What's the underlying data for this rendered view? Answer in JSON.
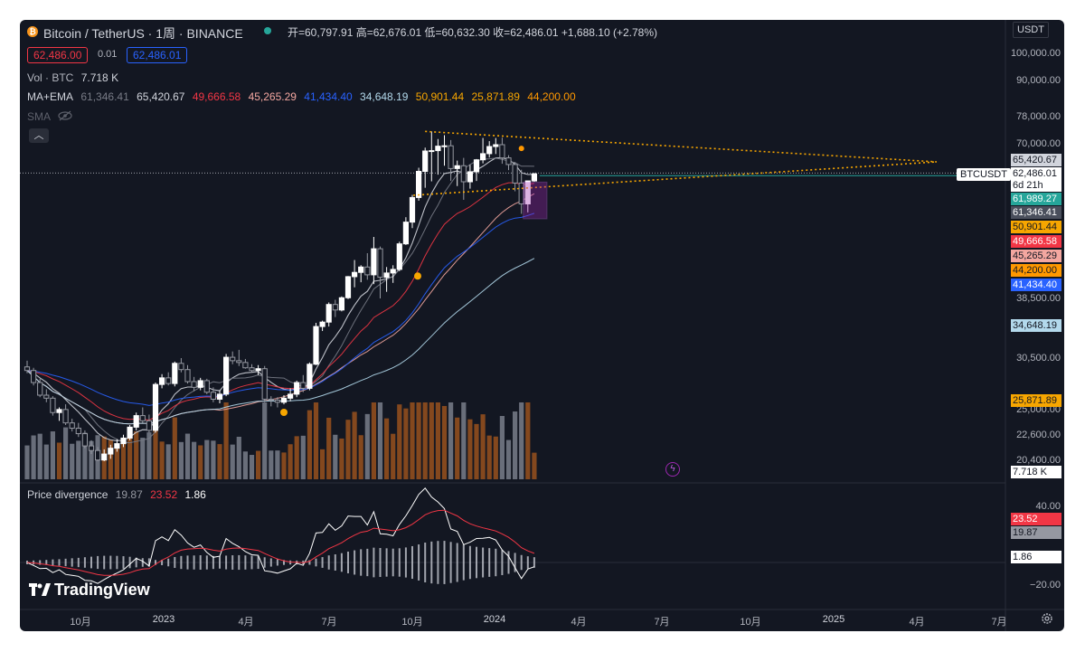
{
  "header": {
    "title": "Bitcoin / TetherUS · 1周 · BINANCE",
    "ohlc": "开=60,797.91 高=62,676.01 低=60,632.30 收=62,486.01 +1,688.10 (+2.78%)",
    "sell_price": "62,486.00",
    "spread": "0.01",
    "buy_price": "62,486.01"
  },
  "legends": {
    "vol": {
      "label": "Vol · BTC",
      "value": "7.718 K"
    },
    "ma_ema": {
      "label": "MA+EMA",
      "values": [
        "61,346.41",
        "65,420.67",
        "49,666.58",
        "45,265.29",
        "41,434.40",
        "34,648.19",
        "50,901.44",
        "25,871.89",
        "44,200.00"
      ]
    },
    "sma": {
      "label": "SMA"
    },
    "divergence": {
      "label": "Price divergence",
      "values": [
        "19.87",
        "23.52",
        "1.86"
      ]
    }
  },
  "axis": {
    "currency": "USDT",
    "price_labels": [
      "100,000.00",
      "90,000.00",
      "78,000.00",
      "70,000.00",
      "38,500.00",
      "30,500.00",
      "25,000.00",
      "22,600.00",
      "20,400.00"
    ],
    "osc_labels": [
      "40.00",
      "−20.00"
    ],
    "time_labels": [
      "10月",
      "2023",
      "4月",
      "7月",
      "10月",
      "2024",
      "4月",
      "7月",
      "10月",
      "2025",
      "4月",
      "7月"
    ]
  },
  "price_tags": [
    {
      "text": "65,420.67",
      "bg": "#d1d4dc",
      "fg": "#131722"
    },
    {
      "text": "62,486.01",
      "bg": "#ffffff",
      "fg": "#131722"
    },
    {
      "text": "6d 21h",
      "bg": "#ffffff",
      "fg": "#131722"
    },
    {
      "text": "61,989.27",
      "bg": "#26a69a",
      "fg": "#ffffff"
    },
    {
      "text": "61,346.41",
      "bg": "#4a4f5c",
      "fg": "#ffffff"
    },
    {
      "text": "50,901.44",
      "bg": "#f7a600",
      "fg": "#131722"
    },
    {
      "text": "49,666.58",
      "bg": "#f23645",
      "fg": "#ffffff"
    },
    {
      "text": "45,265.29",
      "bg": "#f4a7a0",
      "fg": "#131722"
    },
    {
      "text": "44,200.00",
      "bg": "#ff9800",
      "fg": "#131722"
    },
    {
      "text": "41,434.40",
      "bg": "#2962ff",
      "fg": "#ffffff"
    },
    {
      "text": "34,648.19",
      "bg": "#b3d9ec",
      "fg": "#131722"
    },
    {
      "text": "25,871.89",
      "bg": "#f7a600",
      "fg": "#131722"
    },
    {
      "text": "7.718 K",
      "bg": "#ffffff",
      "fg": "#131722"
    },
    {
      "text": "23.52",
      "bg": "#f23645",
      "fg": "#ffffff"
    },
    {
      "text": "19.87",
      "bg": "#9598a1",
      "fg": "#131722"
    },
    {
      "text": "1.86",
      "bg": "#ffffff",
      "fg": "#131722"
    }
  ],
  "symbol_tag": "BTCUSDT",
  "brand": "TradingView",
  "colors": {
    "background": "#131722",
    "up": "#ffffff",
    "down": "#9598a1",
    "vol_up": "#8a4b1f",
    "vol_down": "#6e7380",
    "trend": "#f7a600"
  },
  "chart_data": {
    "type": "candlestick",
    "interval": "1W",
    "symbol": "BTCUSDT",
    "ylim": [
      20000,
      100000
    ],
    "candles": [
      [
        29500,
        30200,
        28800,
        29100
      ],
      [
        29100,
        29400,
        27500,
        27800
      ],
      [
        27800,
        28200,
        26300,
        26500
      ],
      [
        26500,
        27100,
        25800,
        26200
      ],
      [
        26200,
        26400,
        24500,
        24800
      ],
      [
        24800,
        25300,
        24000,
        25100
      ],
      [
        25100,
        25600,
        23600,
        23800
      ],
      [
        23800,
        24200,
        23000,
        23300
      ],
      [
        23300,
        23800,
        22500,
        22800
      ],
      [
        22800,
        23100,
        21500,
        21700
      ],
      [
        21700,
        22200,
        21000,
        21300
      ],
      [
        21300,
        21600,
        20200,
        20500
      ],
      [
        20500,
        21400,
        20100,
        21000
      ],
      [
        21000,
        21800,
        20600,
        21500
      ],
      [
        21500,
        22300,
        21200,
        21900
      ],
      [
        21900,
        22700,
        21600,
        22400
      ],
      [
        22400,
        23600,
        22200,
        23400
      ],
      [
        23400,
        24800,
        23100,
        24500
      ],
      [
        24500,
        25300,
        23800,
        24000
      ],
      [
        24000,
        24600,
        22900,
        23100
      ],
      [
        23100,
        27800,
        22900,
        27600
      ],
      [
        27600,
        28700,
        27200,
        28300
      ],
      [
        28300,
        28900,
        27500,
        27700
      ],
      [
        27700,
        30100,
        27400,
        29900
      ],
      [
        29900,
        30500,
        28900,
        29200
      ],
      [
        29200,
        29700,
        27700,
        27900
      ],
      [
        27900,
        28400,
        26900,
        27300
      ],
      [
        27300,
        28300,
        27000,
        28000
      ],
      [
        28000,
        28200,
        26600,
        26800
      ],
      [
        26800,
        27300,
        25800,
        26100
      ],
      [
        26100,
        27000,
        25700,
        26600
      ],
      [
        26600,
        31000,
        26400,
        30600
      ],
      [
        30600,
        31300,
        29800,
        30200
      ],
      [
        30200,
        31500,
        29600,
        30000
      ],
      [
        30000,
        30400,
        29300,
        29400
      ],
      [
        29400,
        29800,
        28900,
        29100
      ],
      [
        29100,
        29700,
        28600,
        29300
      ],
      [
        29300,
        29600,
        25800,
        26100
      ],
      [
        26100,
        26400,
        25400,
        26000
      ],
      [
        26000,
        26300,
        25300,
        25800
      ],
      [
        25800,
        26500,
        25600,
        26200
      ],
      [
        26200,
        27200,
        25900,
        26600
      ],
      [
        26600,
        28000,
        26300,
        27800
      ],
      [
        27800,
        28600,
        26800,
        27200
      ],
      [
        27200,
        30000,
        27000,
        29800
      ],
      [
        29800,
        35000,
        29700,
        34500
      ],
      [
        34500,
        35300,
        33900,
        35100
      ],
      [
        35100,
        37900,
        34500,
        37600
      ],
      [
        37600,
        38300,
        35800,
        36800
      ],
      [
        36800,
        38800,
        36600,
        38600
      ],
      [
        38600,
        42000,
        38400,
        41900
      ],
      [
        41900,
        44700,
        40200,
        42600
      ],
      [
        42600,
        43800,
        41000,
        43500
      ],
      [
        43500,
        45900,
        41400,
        42200
      ],
      [
        42200,
        48900,
        40700,
        46700
      ],
      [
        46700,
        47100,
        38500,
        41800
      ],
      [
        41800,
        43500,
        39500,
        42500
      ],
      [
        42500,
        43800,
        40900,
        43100
      ],
      [
        43100,
        48000,
        42800,
        47600
      ],
      [
        47600,
        52800,
        47400,
        51800
      ],
      [
        51800,
        57600,
        50600,
        57000
      ],
      [
        57000,
        64000,
        56300,
        63100
      ],
      [
        63100,
        69200,
        59200,
        68300
      ],
      [
        68300,
        73800,
        60700,
        68400
      ],
      [
        68400,
        71600,
        62300,
        69600
      ],
      [
        69600,
        72700,
        64500,
        69700
      ],
      [
        69700,
        71300,
        60800,
        63800
      ],
      [
        63800,
        65800,
        59600,
        64500
      ],
      [
        64500,
        66500,
        56500,
        60600
      ],
      [
        60600,
        64700,
        59000,
        63000
      ],
      [
        63000,
        66200,
        60800,
        66000
      ],
      [
        66000,
        71900,
        65100,
        67600
      ],
      [
        67600,
        71000,
        66600,
        69500
      ],
      [
        69500,
        71900,
        67500,
        70000
      ],
      [
        70000,
        72000,
        65000,
        66500
      ],
      [
        66500,
        67200,
        63400,
        64800
      ],
      [
        64800,
        65400,
        58400,
        60300
      ],
      [
        60300,
        63500,
        53500,
        55600
      ],
      [
        55600,
        60800,
        53800,
        60800
      ],
      [
        60800,
        62700,
        60600,
        62500
      ]
    ],
    "series": [
      {
        "name": "61,346.41"
      },
      {
        "name": "65,420.67"
      },
      {
        "name": "49,666.58"
      },
      {
        "name": "45,265.29"
      },
      {
        "name": "41,434.40"
      },
      {
        "name": "34,648.19"
      },
      {
        "name": "50,901.44"
      },
      {
        "name": "25,871.89"
      },
      {
        "name": "44,200.00"
      }
    ]
  }
}
